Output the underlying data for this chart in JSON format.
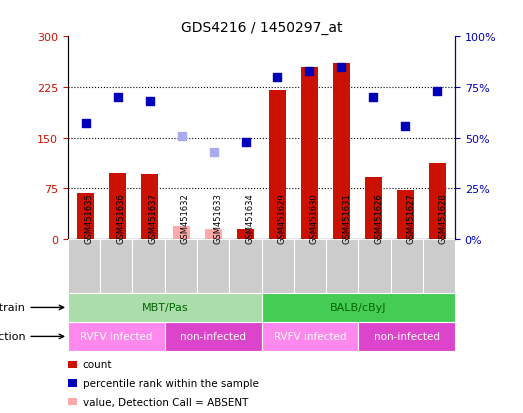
{
  "title": "GDS4216 / 1450297_at",
  "samples": [
    "GSM451635",
    "GSM451636",
    "GSM451637",
    "GSM451632",
    "GSM451633",
    "GSM451634",
    "GSM451629",
    "GSM451630",
    "GSM451631",
    "GSM451626",
    "GSM451627",
    "GSM451628"
  ],
  "count_values": [
    68,
    98,
    96,
    null,
    null,
    15,
    220,
    255,
    260,
    92,
    72,
    112
  ],
  "count_absent": [
    null,
    null,
    null,
    20,
    15,
    null,
    null,
    null,
    null,
    null,
    null,
    null
  ],
  "rank_values": [
    57,
    70,
    68,
    null,
    null,
    48,
    80,
    83,
    85,
    70,
    56,
    73
  ],
  "rank_absent": [
    null,
    null,
    null,
    51,
    43,
    null,
    null,
    null,
    null,
    null,
    null,
    null
  ],
  "ylim_left": [
    0,
    300
  ],
  "ylim_right": [
    0,
    100
  ],
  "yticks_left": [
    0,
    75,
    150,
    225,
    300
  ],
  "yticks_right": [
    0,
    25,
    50,
    75,
    100
  ],
  "ytick_labels_left": [
    "0",
    "75",
    "150",
    "225",
    "300"
  ],
  "ytick_labels_right": [
    "0%",
    "25%",
    "50%",
    "75%",
    "100%"
  ],
  "strain_groups": [
    {
      "label": "MBT/Pas",
      "start": 0,
      "end": 5,
      "color": "#AADDAA"
    },
    {
      "label": "BALB/cByJ",
      "start": 6,
      "end": 11,
      "color": "#44CC55"
    }
  ],
  "infection_groups": [
    {
      "label": "RVFV infected",
      "start": 0,
      "end": 2,
      "color": "#FF88EE"
    },
    {
      "label": "non-infected",
      "start": 3,
      "end": 5,
      "color": "#DD44CC"
    },
    {
      "label": "RVFV infected",
      "start": 6,
      "end": 8,
      "color": "#FF88EE"
    },
    {
      "label": "non-infected",
      "start": 9,
      "end": 11,
      "color": "#DD44CC"
    }
  ],
  "bar_color": "#CC1100",
  "bar_absent_color": "#FFAAAA",
  "dot_color": "#0000BB",
  "dot_absent_color": "#AAAAEE",
  "grid_color": "#000000",
  "bg_color": "#FFFFFF",
  "label_color_left": "#CC1100",
  "label_color_right": "#0000BB",
  "strain_label_color": "#006600",
  "bar_width": 0.55,
  "dot_size": 28,
  "legend_items": [
    {
      "color": "#CC1100",
      "label": "count"
    },
    {
      "color": "#0000BB",
      "label": "percentile rank within the sample"
    },
    {
      "color": "#FFAAAA",
      "label": "value, Detection Call = ABSENT"
    },
    {
      "color": "#AAAAEE",
      "label": "rank, Detection Call = ABSENT"
    }
  ]
}
